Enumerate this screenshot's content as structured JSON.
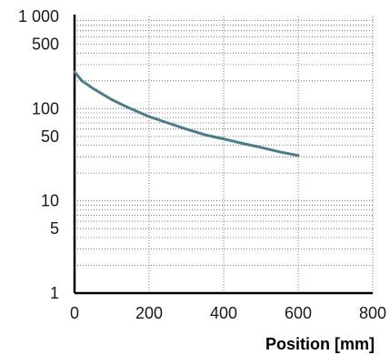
{
  "chart_data": {
    "type": "line",
    "title": "",
    "xlabel": "Position [mm]",
    "ylabel": "",
    "xlim": [
      0,
      800
    ],
    "ylim": [
      1,
      1000
    ],
    "y_scale": "log",
    "grid": true,
    "grid_style": "dotted",
    "x_ticks": [
      {
        "value": 0,
        "label": "0"
      },
      {
        "value": 200,
        "label": "200"
      },
      {
        "value": 400,
        "label": "400"
      },
      {
        "value": 600,
        "label": "600"
      },
      {
        "value": 800,
        "label": "800"
      }
    ],
    "y_ticks": [
      {
        "value": 1,
        "label": "1"
      },
      {
        "value": 5,
        "label": "5"
      },
      {
        "value": 10,
        "label": "10"
      },
      {
        "value": 50,
        "label": "50"
      },
      {
        "value": 100,
        "label": "100"
      },
      {
        "value": 500,
        "label": "500"
      },
      {
        "value": 1000,
        "label": "1 000"
      }
    ],
    "series": [
      {
        "color": "#4a7c8e",
        "x": [
          0,
          20,
          50,
          100,
          150,
          200,
          250,
          300,
          350,
          400,
          450,
          500,
          550,
          600
        ],
        "y": [
          250,
          200,
          165,
          125,
          100,
          82,
          70,
          60,
          52,
          47,
          42,
          38,
          34,
          31
        ]
      }
    ]
  }
}
